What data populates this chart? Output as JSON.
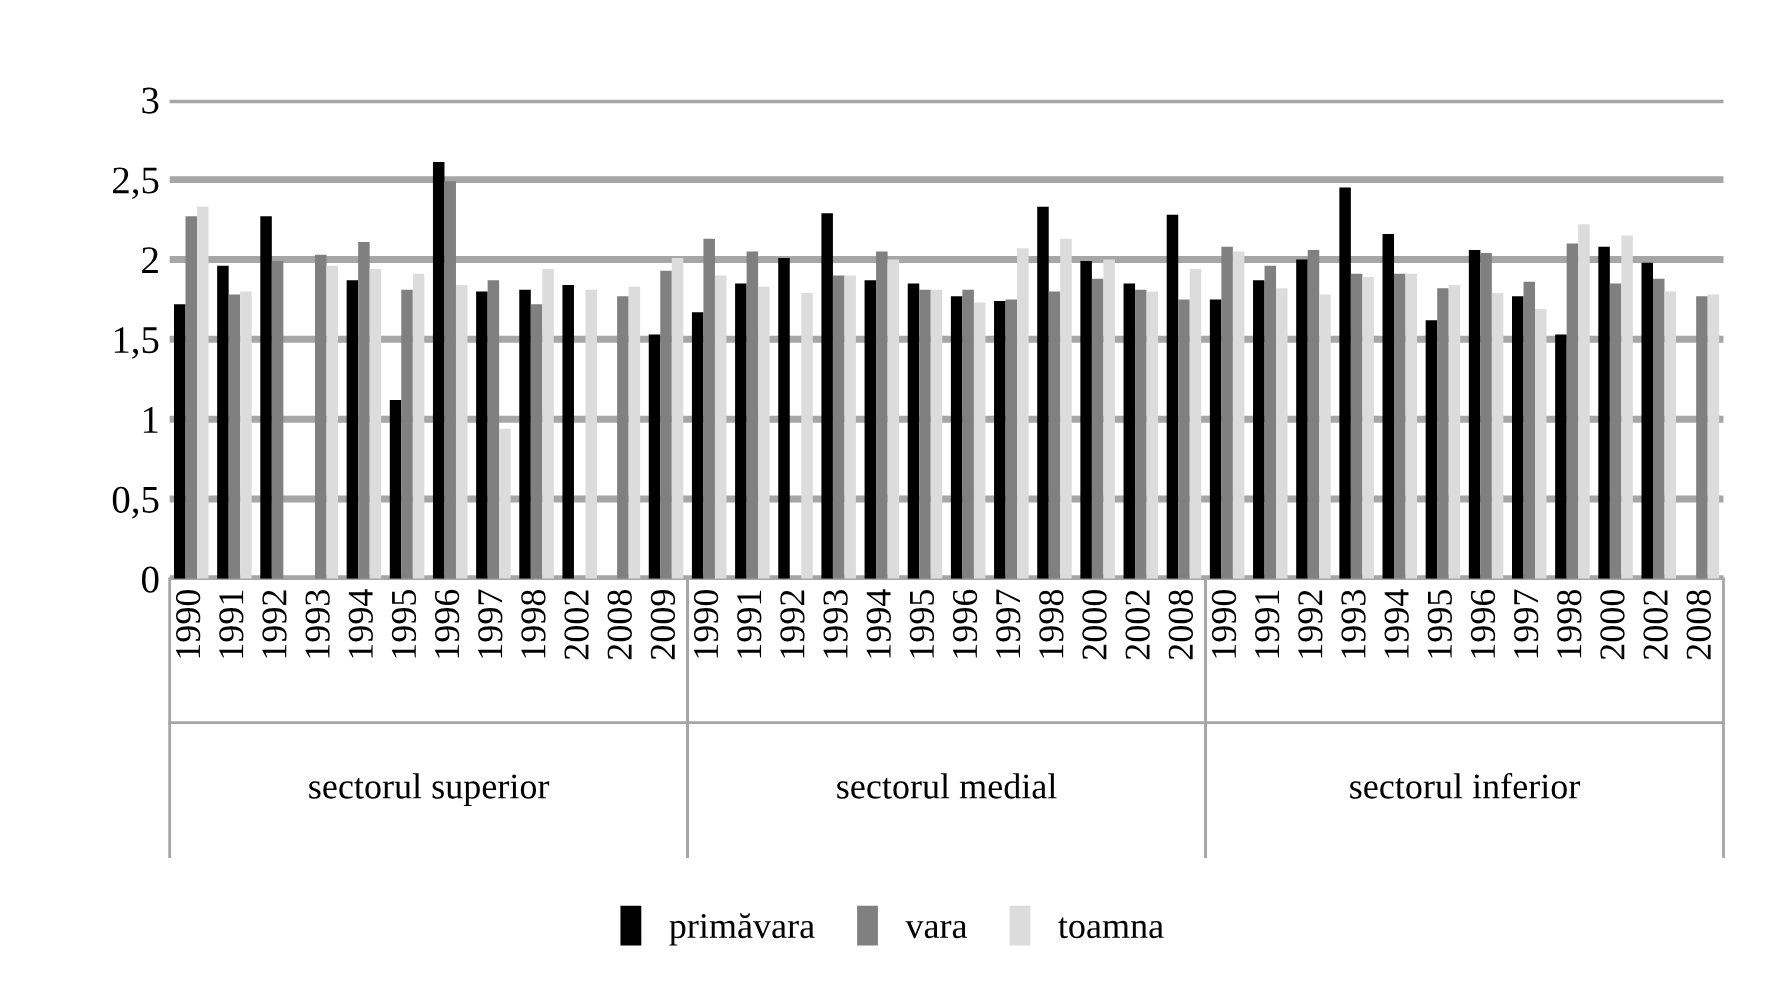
{
  "chart_data": {
    "type": "bar",
    "categories": [
      "1990",
      "1991",
      "1992",
      "1993",
      "1994",
      "1995",
      "1996",
      "1997",
      "1998",
      "2002",
      "2008",
      "2009",
      "1990",
      "1991",
      "1992",
      "1993",
      "1994",
      "1995",
      "1996",
      "1997",
      "1998",
      "2000",
      "2002",
      "2008",
      "1990",
      "1991",
      "1992",
      "1993",
      "1994",
      "1995",
      "1996",
      "1997",
      "1998",
      "2000",
      "2002",
      "2008"
    ],
    "series": [
      {
        "name": "primăvara",
        "color": "#000000",
        "values": [
          1.72,
          1.96,
          2.27,
          null,
          1.87,
          1.12,
          2.61,
          1.8,
          1.81,
          1.84,
          null,
          1.53,
          1.67,
          1.85,
          2.01,
          2.29,
          1.87,
          1.85,
          1.77,
          1.74,
          2.33,
          1.99,
          1.85,
          2.28,
          1.75,
          1.87,
          2.0,
          2.45,
          2.16,
          1.62,
          2.06,
          1.77,
          1.53,
          2.08,
          1.98,
          null
        ]
      },
      {
        "name": "vara",
        "color": "#808080",
        "values": [
          2.27,
          1.78,
          1.99,
          2.03,
          2.11,
          1.81,
          2.49,
          1.87,
          1.72,
          null,
          1.77,
          1.93,
          2.13,
          2.05,
          null,
          1.9,
          2.05,
          1.81,
          1.81,
          1.75,
          1.8,
          1.88,
          1.81,
          1.75,
          2.08,
          1.96,
          2.06,
          1.91,
          1.91,
          1.82,
          2.04,
          1.86,
          2.1,
          1.85,
          1.88,
          1.77
        ]
      },
      {
        "name": "toamna",
        "color": "#dcdcdc",
        "values": [
          2.33,
          1.8,
          null,
          1.96,
          1.94,
          1.91,
          1.84,
          0.94,
          1.94,
          1.81,
          1.83,
          2.01,
          1.9,
          1.83,
          1.79,
          1.9,
          2.0,
          1.81,
          1.73,
          2.07,
          2.13,
          2.0,
          1.8,
          1.94,
          2.05,
          1.82,
          1.78,
          1.89,
          1.91,
          1.84,
          1.79,
          1.69,
          2.22,
          2.15,
          1.8,
          1.78
        ]
      }
    ],
    "annotations": [
      "sectorul superior",
      "sectorul medial",
      "sectorul inferior"
    ],
    "ylim": [
      0,
      3
    ],
    "yticks": [
      0,
      {
        "value": 0.5,
        "label": "0,5"
      },
      1,
      {
        "value": 1.5,
        "label": "1,5"
      },
      2,
      {
        "value": 2.5,
        "label": "2,5"
      },
      3
    ],
    "grid": "y",
    "legend": "bottom"
  }
}
